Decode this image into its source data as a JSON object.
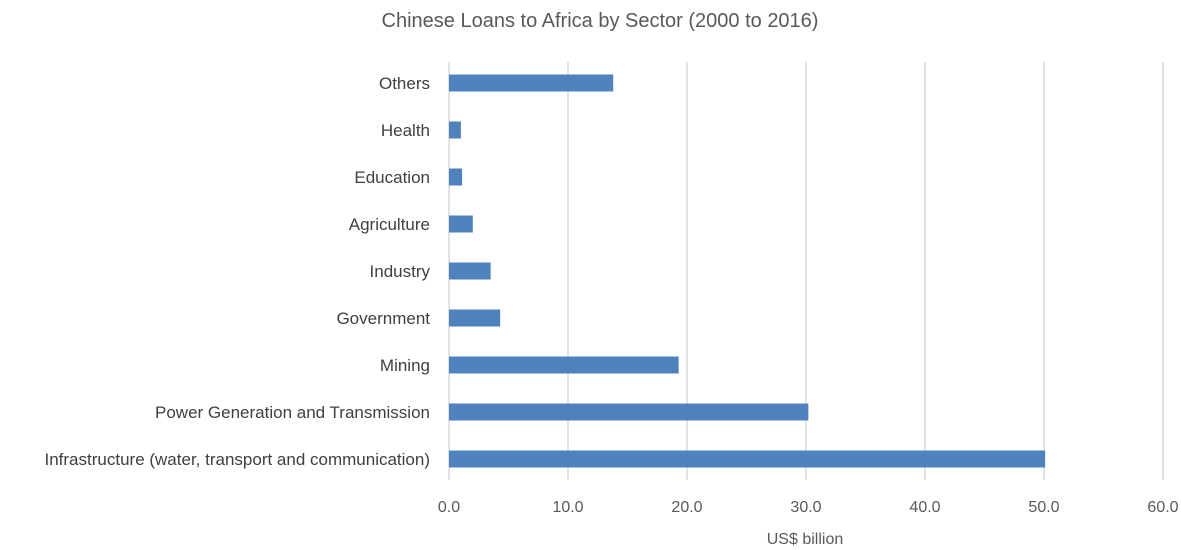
{
  "chart_data": {
    "type": "bar",
    "orientation": "horizontal",
    "title": "Chinese Loans to Africa by Sector (2000 to 2016)",
    "xlabel": "US$ billion",
    "ylabel": "",
    "categories": [
      "Others",
      "Health",
      "Education",
      "Agriculture",
      "Industry",
      "Government",
      "Mining",
      "Power Generation and Transmission",
      "Infrastructure (water, transport and communication)"
    ],
    "values": [
      13.8,
      1.0,
      1.1,
      2.0,
      3.5,
      4.3,
      19.3,
      30.2,
      50.1
    ],
    "xlim": [
      0,
      60
    ],
    "xticks": [
      "0.0",
      "10.0",
      "20.0",
      "30.0",
      "40.0",
      "50.0",
      "60.0"
    ],
    "grid": "vertical",
    "legend": "none",
    "bar_color": "#4f81bd"
  }
}
